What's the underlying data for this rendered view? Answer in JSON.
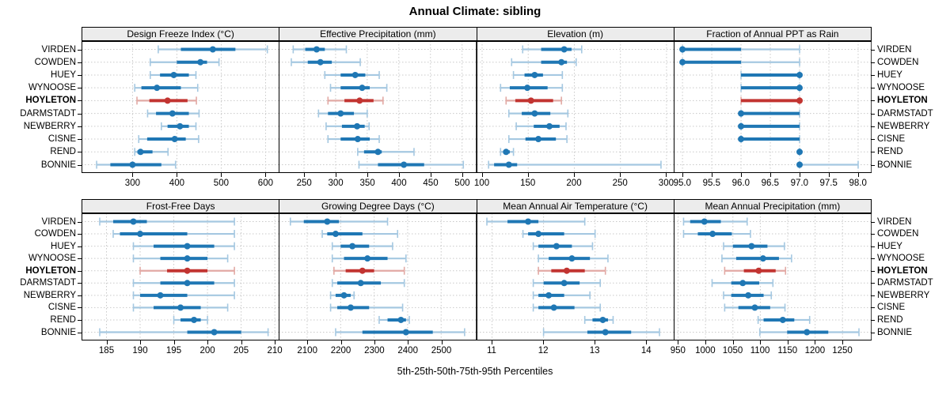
{
  "chart_data": {
    "type": "dotplot-intervals",
    "title": "Annual Climate: sibling",
    "caption": "5th-25th-50th-75th-95th Percentiles",
    "percentiles": [
      5,
      25,
      50,
      75,
      95
    ],
    "stations": [
      "VIRDEN",
      "COWDEN",
      "HUEY",
      "WYNOOSE",
      "HOYLETON",
      "DARMSTADT",
      "NEWBERRY",
      "CISNE",
      "REND",
      "BONNIE"
    ],
    "highlighted_station": "HOYLETON",
    "layout_hint": {
      "rows": 2,
      "cols": 4,
      "station_labels": "both-sides",
      "grid": "dotted"
    },
    "colors": {
      "series": "#1f77b4",
      "series_light": "#a5c8e1",
      "highlight": "#c23431",
      "highlight_light": "#e2a9a4",
      "grid": "#c9c9c9",
      "strip_bg": "#ececec",
      "border": "#000000"
    },
    "panels": [
      {
        "name": "design-freeze-index",
        "title": "Design Freeze Index (°C)",
        "ticks": [
          "300",
          "400",
          "500",
          "600"
        ],
        "tick_values": [
          300,
          400,
          500,
          600
        ],
        "xlim": [
          185,
          630
        ],
        "values": {
          "VIRDEN": [
            358,
            409,
            481,
            532,
            604
          ],
          "COWDEN": [
            340,
            400,
            453,
            468,
            495
          ],
          "HUEY": [
            340,
            362,
            393,
            427,
            443
          ],
          "WYNOOSE": [
            305,
            320,
            355,
            409,
            447
          ],
          "HOYLETON": [
            310,
            338,
            379,
            424,
            444
          ],
          "DARMSTADT": [
            334,
            353,
            390,
            427,
            450
          ],
          "NEWBERRY": [
            365,
            379,
            407,
            427,
            443
          ],
          "CISNE": [
            314,
            333,
            395,
            420,
            449
          ],
          "REND": [
            305,
            311,
            318,
            345,
            380
          ],
          "BONNIE": [
            219,
            250,
            300,
            365,
            397
          ]
        }
      },
      {
        "name": "effective-precipitation",
        "title": "Effective Precipitation (mm)",
        "ticks": [
          "250",
          "300",
          "350",
          "400",
          "450",
          "500"
        ],
        "tick_values": [
          250,
          300,
          350,
          400,
          450,
          500
        ],
        "xlim": [
          210,
          522
        ],
        "values": {
          "VIRDEN": [
            233,
            252,
            270,
            283,
            317
          ],
          "COWDEN": [
            230,
            256,
            276,
            294,
            339
          ],
          "HUEY": [
            283,
            308,
            331,
            347,
            369
          ],
          "WYNOOSE": [
            292,
            308,
            342,
            354,
            381
          ],
          "HOYLETON": [
            288,
            314,
            338,
            360,
            375
          ],
          "DARMSTADT": [
            273,
            288,
            308,
            329,
            350
          ],
          "NEWBERRY": [
            285,
            310,
            334,
            346,
            353
          ],
          "CISNE": [
            288,
            308,
            335,
            354,
            369
          ],
          "REND": [
            335,
            345,
            367,
            373,
            424
          ],
          "BONNIE": [
            337,
            367,
            408,
            440,
            502
          ]
        }
      },
      {
        "name": "elevation",
        "title": "Elevation (m)",
        "ticks": [
          "100",
          "150",
          "200",
          "250",
          "300"
        ],
        "tick_values": [
          100,
          150,
          200,
          250,
          300
        ],
        "xlim": [
          94,
          308
        ],
        "values": {
          "VIRDEN": [
            144,
            164,
            189,
            197,
            208
          ],
          "COWDEN": [
            132,
            164,
            186,
            192,
            202
          ],
          "HUEY": [
            134,
            146,
            157,
            166,
            187
          ],
          "WYNOOSE": [
            120,
            130,
            149,
            171,
            187
          ],
          "HOYLETON": [
            126,
            136,
            153,
            177,
            186
          ],
          "DARMSTADT": [
            129,
            143,
            157,
            174,
            193
          ],
          "NEWBERRY": [
            137,
            156,
            173,
            184,
            191
          ],
          "CISNE": [
            129,
            147,
            161,
            180,
            192
          ],
          "REND": [
            120,
            123,
            126,
            130,
            134
          ],
          "BONNIE": [
            107,
            113,
            129,
            138,
            294
          ]
        }
      },
      {
        "name": "fraction-annual-ppt-as-rain",
        "title": "Fraction of Annual PPT as Rain",
        "ticks": [
          "95.0",
          "95.5",
          "96.0",
          "96.5",
          "97.0",
          "97.5",
          "98.0"
        ],
        "tick_values": [
          95.0,
          95.5,
          96.0,
          96.5,
          97.0,
          97.5,
          98.0
        ],
        "xlim": [
          94.85,
          98.22
        ],
        "values": {
          "VIRDEN": [
            95,
            95,
            95,
            96,
            97
          ],
          "COWDEN": [
            95,
            95,
            95,
            96,
            97
          ],
          "HUEY": [
            96,
            96,
            97,
            97,
            97
          ],
          "WYNOOSE": [
            96,
            96,
            97,
            97,
            97
          ],
          "HOYLETON": [
            96,
            96,
            97,
            97,
            97
          ],
          "DARMSTADT": [
            96,
            96,
            96,
            97,
            97
          ],
          "NEWBERRY": [
            96,
            96,
            96,
            97,
            97
          ],
          "CISNE": [
            96,
            96,
            96,
            97,
            97
          ],
          "REND": [
            97,
            97,
            97,
            97,
            97
          ],
          "BONNIE": [
            97,
            97,
            97,
            97,
            98
          ]
        }
      },
      {
        "name": "frost-free-days",
        "title": "Frost-Free Days",
        "ticks": [
          "185",
          "190",
          "195",
          "200",
          "205",
          "210"
        ],
        "tick_values": [
          185,
          190,
          195,
          200,
          205,
          210
        ],
        "xlim": [
          181.3,
          210.6
        ],
        "values": {
          "VIRDEN": [
            184,
            186,
            189,
            191,
            204
          ],
          "COWDEN": [
            186,
            187,
            190,
            197,
            204
          ],
          "HUEY": [
            189,
            192,
            197,
            201,
            204
          ],
          "WYNOOSE": [
            189,
            193,
            197,
            200,
            203
          ],
          "HOYLETON": [
            190,
            194,
            197,
            200,
            204
          ],
          "DARMSTADT": [
            189,
            193,
            197,
            201,
            204
          ],
          "NEWBERRY": [
            189,
            190,
            193,
            197,
            204
          ],
          "CISNE": [
            189,
            192,
            196,
            199,
            203
          ],
          "REND": [
            195,
            196,
            198,
            199,
            200
          ],
          "BONNIE": [
            184,
            197,
            201,
            205,
            209
          ]
        }
      },
      {
        "name": "growing-degree-days",
        "title": "Growing Degree Days (°C)",
        "ticks": [
          "2100",
          "2200",
          "2300",
          "2400",
          "2500"
        ],
        "tick_values": [
          2100,
          2200,
          2300,
          2400,
          2500
        ],
        "xlim": [
          2015,
          2604
        ],
        "values": {
          "VIRDEN": [
            2050,
            2090,
            2160,
            2195,
            2340
          ],
          "COWDEN": [
            2145,
            2160,
            2185,
            2265,
            2370
          ],
          "HUEY": [
            2175,
            2200,
            2235,
            2285,
            2355
          ],
          "WYNOOSE": [
            2175,
            2210,
            2280,
            2340,
            2395
          ],
          "HOYLETON": [
            2180,
            2215,
            2265,
            2300,
            2390
          ],
          "DARMSTADT": [
            2175,
            2190,
            2260,
            2320,
            2390
          ],
          "NEWBERRY": [
            2170,
            2185,
            2210,
            2230,
            2240
          ],
          "CISNE": [
            2170,
            2190,
            2230,
            2285,
            2385
          ],
          "REND": [
            2315,
            2340,
            2380,
            2395,
            2405
          ],
          "BONNIE": [
            2185,
            2265,
            2395,
            2475,
            2570
          ]
        }
      },
      {
        "name": "mean-annual-air-temperature",
        "title": "Mean Annual Air Temperature (°C)",
        "ticks": [
          "11",
          "12",
          "13",
          "14"
        ],
        "tick_values": [
          11,
          12,
          13,
          14
        ],
        "xlim": [
          10.7,
          14.53
        ],
        "values": {
          "VIRDEN": [
            10.9,
            11.3,
            11.7,
            11.9,
            12.8
          ],
          "COWDEN": [
            11.6,
            11.7,
            11.9,
            12.4,
            13.0
          ],
          "HUEY": [
            11.8,
            11.9,
            12.25,
            12.55,
            12.95
          ],
          "WYNOOSE": [
            11.9,
            12.1,
            12.55,
            12.9,
            13.25
          ],
          "HOYLETON": [
            11.9,
            12.15,
            12.45,
            12.8,
            13.2
          ],
          "DARMSTADT": [
            11.8,
            12.0,
            12.4,
            12.7,
            13.1
          ],
          "NEWBERRY": [
            11.8,
            11.9,
            12.1,
            12.4,
            12.9
          ],
          "CISNE": [
            11.8,
            11.9,
            12.2,
            12.6,
            13.1
          ],
          "REND": [
            12.8,
            12.95,
            13.15,
            13.25,
            13.35
          ],
          "BONNIE": [
            12.0,
            12.85,
            13.2,
            13.7,
            14.25
          ]
        }
      },
      {
        "name": "mean-annual-precipitation",
        "title": "Mean Annual Precipitation (mm)",
        "ticks": [
          "950",
          "1000",
          "1050",
          "1100",
          "1150",
          "1200",
          "1250"
        ],
        "tick_values": [
          950,
          1000,
          1050,
          1100,
          1150,
          1200,
          1250
        ],
        "xlim": [
          942,
          1302
        ],
        "values": {
          "VIRDEN": [
            960,
            972,
            998,
            1028,
            1076
          ],
          "COWDEN": [
            960,
            986,
            1013,
            1048,
            1082
          ],
          "HUEY": [
            1033,
            1050,
            1084,
            1113,
            1144
          ],
          "WYNOOSE": [
            1030,
            1056,
            1105,
            1134,
            1157
          ],
          "HOYLETON": [
            1035,
            1070,
            1097,
            1128,
            1146
          ],
          "DARMSTADT": [
            1012,
            1047,
            1068,
            1098,
            1123
          ],
          "NEWBERRY": [
            1033,
            1047,
            1078,
            1106,
            1120
          ],
          "CISNE": [
            1035,
            1060,
            1090,
            1118,
            1145
          ],
          "REND": [
            1096,
            1106,
            1141,
            1162,
            1190
          ],
          "BONNIE": [
            1099,
            1149,
            1185,
            1224,
            1280
          ]
        }
      }
    ]
  }
}
